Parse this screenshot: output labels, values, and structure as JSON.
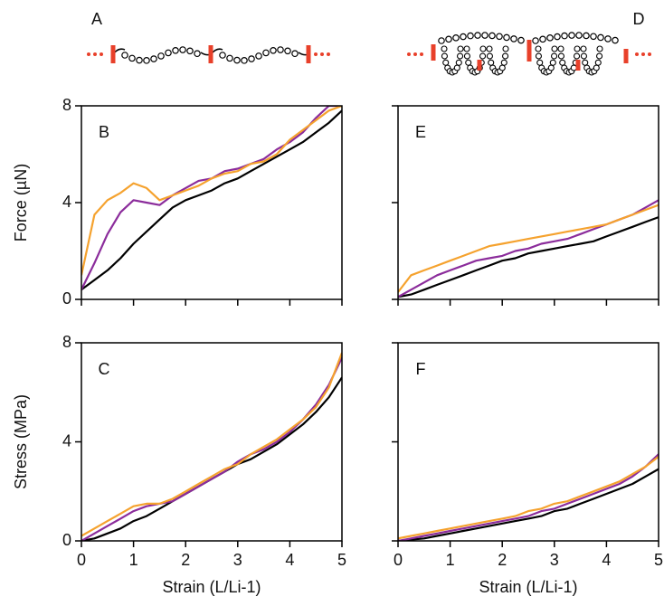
{
  "schematics": [
    {
      "label": "A"
    },
    {
      "label": "D"
    }
  ],
  "chart_data": [
    {
      "type": "line",
      "panel": "B",
      "ylabel": "Force (µN)",
      "xlim": [
        0,
        5
      ],
      "ylim": [
        0,
        8
      ],
      "yticks": [
        0,
        4,
        8
      ],
      "xticks": [
        0,
        1,
        2,
        3,
        4,
        5
      ],
      "xtick_labels": false,
      "ytick_labels": true,
      "x": [
        0,
        0.25,
        0.5,
        0.75,
        1,
        1.25,
        1.5,
        1.75,
        2,
        2.25,
        2.5,
        2.75,
        3,
        3.25,
        3.5,
        3.75,
        4,
        4.25,
        4.5,
        4.75,
        5
      ],
      "series": [
        {
          "color": "#000000",
          "values": [
            0.4,
            0.8,
            1.2,
            1.7,
            2.3,
            2.8,
            3.3,
            3.8,
            4.1,
            4.3,
            4.5,
            4.8,
            5.0,
            5.3,
            5.6,
            5.9,
            6.2,
            6.5,
            6.9,
            7.3,
            7.8
          ]
        },
        {
          "color": "#8b2c9b",
          "values": [
            0.4,
            1.5,
            2.7,
            3.6,
            4.1,
            4.0,
            3.9,
            4.3,
            4.6,
            4.9,
            5.0,
            5.3,
            5.4,
            5.6,
            5.8,
            6.2,
            6.5,
            6.9,
            7.5,
            8.0,
            8.0
          ]
        },
        {
          "color": "#f5a22e",
          "values": [
            1.0,
            3.5,
            4.1,
            4.4,
            4.8,
            4.6,
            4.1,
            4.3,
            4.5,
            4.7,
            5.0,
            5.2,
            5.3,
            5.6,
            5.7,
            6.0,
            6.6,
            7.0,
            7.4,
            7.8,
            8.0
          ]
        }
      ]
    },
    {
      "type": "line",
      "panel": "C",
      "ylabel": "Stress (MPa)",
      "xlabel": "Strain (L/Li-1)",
      "xlim": [
        0,
        5
      ],
      "ylim": [
        0,
        8
      ],
      "yticks": [
        0,
        4,
        8
      ],
      "xticks": [
        0,
        1,
        2,
        3,
        4,
        5
      ],
      "xtick_labels": true,
      "ytick_labels": true,
      "x": [
        0,
        0.25,
        0.5,
        0.75,
        1,
        1.25,
        1.5,
        1.75,
        2,
        2.25,
        2.5,
        2.75,
        3,
        3.25,
        3.5,
        3.75,
        4,
        4.25,
        4.5,
        4.75,
        5
      ],
      "series": [
        {
          "color": "#000000",
          "values": [
            0,
            0.1,
            0.3,
            0.5,
            0.8,
            1.0,
            1.3,
            1.6,
            1.9,
            2.2,
            2.5,
            2.8,
            3.1,
            3.3,
            3.6,
            3.9,
            4.3,
            4.7,
            5.2,
            5.8,
            6.6
          ]
        },
        {
          "color": "#8b2c9b",
          "values": [
            0,
            0.3,
            0.6,
            0.9,
            1.2,
            1.4,
            1.5,
            1.6,
            1.9,
            2.2,
            2.5,
            2.8,
            3.2,
            3.5,
            3.7,
            4.0,
            4.4,
            4.9,
            5.5,
            6.3,
            7.4
          ]
        },
        {
          "color": "#f5a22e",
          "values": [
            0.2,
            0.5,
            0.8,
            1.1,
            1.4,
            1.5,
            1.5,
            1.7,
            2.0,
            2.3,
            2.6,
            2.9,
            3.1,
            3.5,
            3.8,
            4.1,
            4.5,
            4.9,
            5.4,
            6.2,
            7.6
          ]
        }
      ]
    },
    {
      "type": "line",
      "panel": "E",
      "xlim": [
        0,
        5
      ],
      "ylim": [
        0,
        8
      ],
      "yticks": [
        0,
        4,
        8
      ],
      "xticks": [
        0,
        1,
        2,
        3,
        4,
        5
      ],
      "xtick_labels": false,
      "ytick_labels": false,
      "x": [
        0,
        0.25,
        0.5,
        0.75,
        1,
        1.25,
        1.5,
        1.75,
        2,
        2.25,
        2.5,
        2.75,
        3,
        3.25,
        3.5,
        3.75,
        4,
        4.25,
        4.5,
        4.75,
        5
      ],
      "series": [
        {
          "color": "#000000",
          "values": [
            0.1,
            0.2,
            0.4,
            0.6,
            0.8,
            1.0,
            1.2,
            1.4,
            1.6,
            1.7,
            1.9,
            2.0,
            2.1,
            2.2,
            2.3,
            2.4,
            2.6,
            2.8,
            3.0,
            3.2,
            3.4
          ]
        },
        {
          "color": "#8b2c9b",
          "values": [
            0.1,
            0.4,
            0.7,
            1.0,
            1.2,
            1.4,
            1.6,
            1.7,
            1.8,
            2.0,
            2.1,
            2.3,
            2.4,
            2.5,
            2.7,
            2.9,
            3.1,
            3.3,
            3.5,
            3.8,
            4.1
          ]
        },
        {
          "color": "#f5a22e",
          "values": [
            0.3,
            1.0,
            1.2,
            1.4,
            1.6,
            1.8,
            2.0,
            2.2,
            2.3,
            2.4,
            2.5,
            2.6,
            2.7,
            2.8,
            2.9,
            3.0,
            3.1,
            3.3,
            3.5,
            3.7,
            3.9
          ]
        }
      ]
    },
    {
      "type": "line",
      "panel": "F",
      "xlabel": "Strain (L/Li-1)",
      "xlim": [
        0,
        5
      ],
      "ylim": [
        0,
        8
      ],
      "yticks": [
        0,
        4,
        8
      ],
      "xticks": [
        0,
        1,
        2,
        3,
        4,
        5
      ],
      "xtick_labels": true,
      "ytick_labels": false,
      "x": [
        0,
        0.25,
        0.5,
        0.75,
        1,
        1.25,
        1.5,
        1.75,
        2,
        2.25,
        2.5,
        2.75,
        3,
        3.25,
        3.5,
        3.75,
        4,
        4.25,
        4.5,
        4.75,
        5
      ],
      "series": [
        {
          "color": "#000000",
          "values": [
            0,
            0.05,
            0.1,
            0.2,
            0.3,
            0.4,
            0.5,
            0.6,
            0.7,
            0.8,
            0.9,
            1.0,
            1.2,
            1.3,
            1.5,
            1.7,
            1.9,
            2.1,
            2.3,
            2.6,
            2.9
          ]
        },
        {
          "color": "#8b2c9b",
          "values": [
            0,
            0.1,
            0.2,
            0.3,
            0.4,
            0.5,
            0.6,
            0.7,
            0.8,
            0.9,
            1.0,
            1.2,
            1.3,
            1.5,
            1.7,
            1.9,
            2.1,
            2.3,
            2.6,
            3.0,
            3.5
          ]
        },
        {
          "color": "#f5a22e",
          "values": [
            0.1,
            0.2,
            0.3,
            0.4,
            0.5,
            0.6,
            0.7,
            0.8,
            0.9,
            1.0,
            1.2,
            1.3,
            1.5,
            1.6,
            1.8,
            2.0,
            2.2,
            2.4,
            2.7,
            3.0,
            3.4
          ]
        }
      ]
    }
  ]
}
